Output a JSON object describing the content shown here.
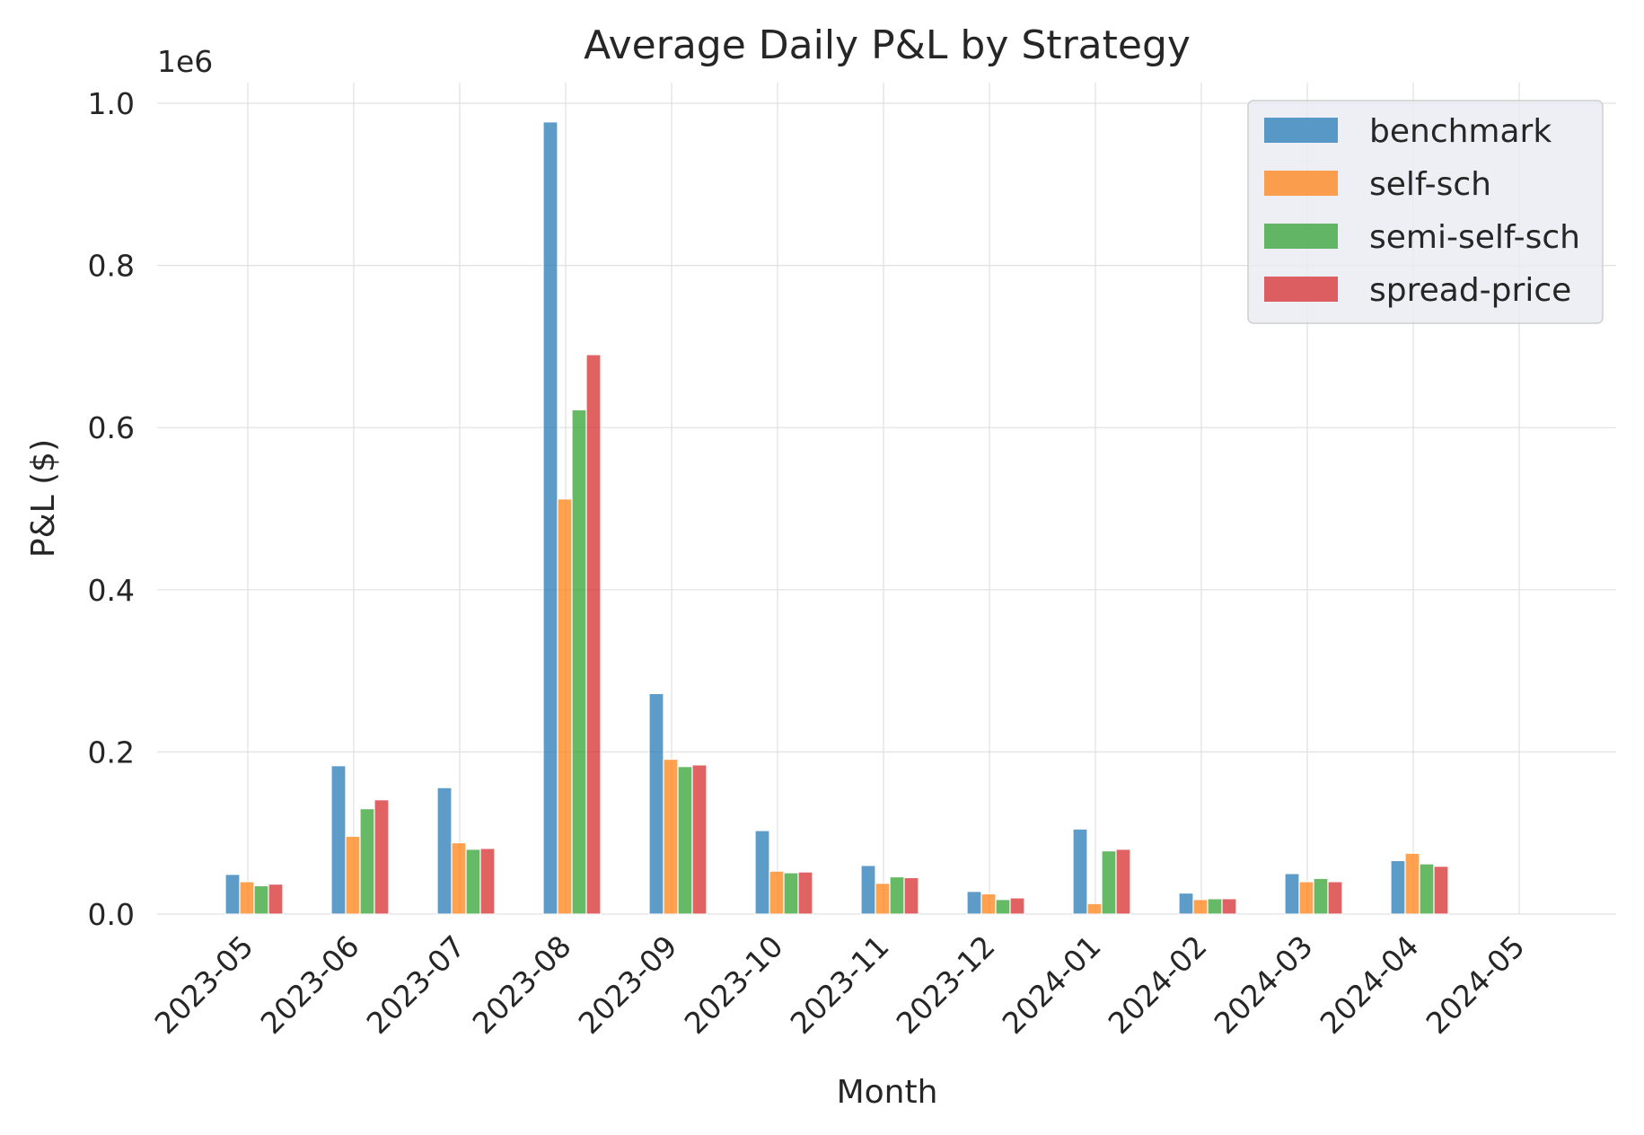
{
  "chart_data": {
    "type": "bar",
    "title": "Average Daily P&L by Strategy",
    "xlabel": "Month",
    "ylabel": "P&L ($)",
    "y_offset_label": "1e6",
    "y_scale": 1000000,
    "ylim": [
      0,
      1.0
    ],
    "yticks": [
      "0.0",
      "0.2",
      "0.4",
      "0.6",
      "0.8",
      "1.0"
    ],
    "x_ticks": [
      "2023-05",
      "2023-06",
      "2023-07",
      "2023-08",
      "2023-09",
      "2023-10",
      "2023-11",
      "2023-12",
      "2024-01",
      "2024-02",
      "2024-03",
      "2024-04",
      "2024-05"
    ],
    "categories": [
      "2023-05",
      "2023-06",
      "2023-07",
      "2023-08",
      "2023-09",
      "2023-10",
      "2023-11",
      "2023-12",
      "2024-01",
      "2024-02",
      "2024-03",
      "2024-04"
    ],
    "grid": true,
    "legend_position": "top-right",
    "series": [
      {
        "name": "benchmark",
        "color": "#1f77b4",
        "values": [
          0.049,
          0.183,
          0.156,
          0.977,
          0.272,
          0.103,
          0.06,
          0.028,
          0.105,
          0.026,
          0.05,
          0.066
        ]
      },
      {
        "name": "self-sch",
        "color": "#ff7f0e",
        "values": [
          0.04,
          0.096,
          0.088,
          0.512,
          0.191,
          0.053,
          0.038,
          0.025,
          0.013,
          0.018,
          0.04,
          0.075
        ]
      },
      {
        "name": "semi-self-sch",
        "color": "#2ca02c",
        "values": [
          0.035,
          0.13,
          0.08,
          0.622,
          0.182,
          0.051,
          0.046,
          0.018,
          0.078,
          0.019,
          0.044,
          0.062
        ]
      },
      {
        "name": "spread-price",
        "color": "#d62728",
        "values": [
          0.037,
          0.141,
          0.081,
          0.69,
          0.184,
          0.052,
          0.045,
          0.02,
          0.08,
          0.019,
          0.04,
          0.059
        ]
      }
    ]
  }
}
